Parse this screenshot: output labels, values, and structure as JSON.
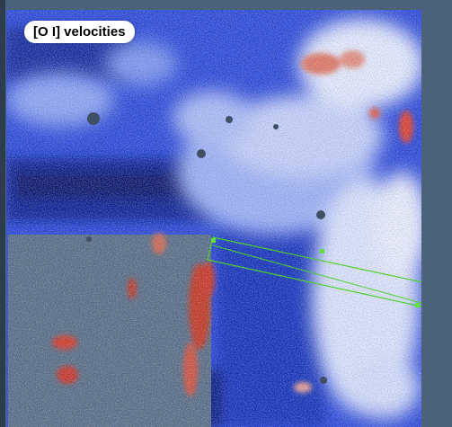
{
  "title": "[O I] velocities",
  "colors": {
    "background": "#4c6278",
    "deep_blue": "#0b1d7a",
    "mid_blue": "#2a48d8",
    "light_blue": "#8fa6f0",
    "white": "#eef0fa",
    "red": "#d23a1e",
    "nodata_gray": "#5a6e82",
    "slit_green": "#4fd02e"
  },
  "icons": {
    "slit": "green-slit-outline",
    "handles": "green-square-handle"
  }
}
